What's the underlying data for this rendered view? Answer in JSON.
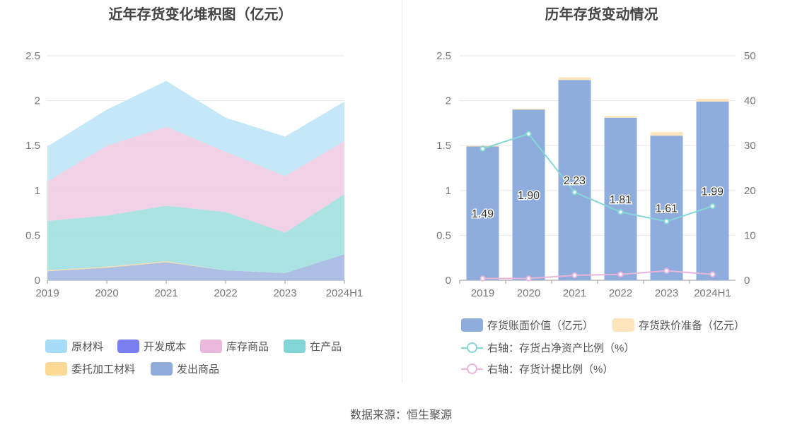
{
  "left_title": "近年存货变化堆积图（亿元）",
  "right_title": "历年存货变动情况",
  "source": "数据来源：恒生聚源",
  "chart_data": [
    {
      "type": "area",
      "stacked": true,
      "title": "近年存货变化堆积图（亿元）",
      "categories": [
        "2019",
        "2020",
        "2021",
        "2022",
        "2023",
        "2024H1"
      ],
      "ylim": [
        0,
        2.5
      ],
      "yticks": [
        "0",
        "0.5",
        "1",
        "1.5",
        "2",
        "2.5"
      ],
      "grid": true,
      "legend_position": "bottom",
      "series": [
        {
          "name": "发出商品",
          "color": "#a9bce3",
          "values": [
            0.1,
            0.14,
            0.2,
            0.11,
            0.08,
            0.29
          ]
        },
        {
          "name": "委托加工材料",
          "color": "#fcd9a0",
          "values": [
            0.01,
            0.01,
            0.01,
            0.0,
            0.0,
            0.0
          ]
        },
        {
          "name": "在产品",
          "color": "#a6e2e2",
          "values": [
            0.55,
            0.57,
            0.62,
            0.65,
            0.45,
            0.67
          ]
        },
        {
          "name": "开发成本",
          "color": "#7a7ff0",
          "values": [
            0,
            0,
            0,
            0,
            0,
            0
          ]
        },
        {
          "name": "库存商品",
          "color": "#efcfe4",
          "values": [
            0.44,
            0.78,
            0.88,
            0.67,
            0.63,
            0.59
          ]
        },
        {
          "name": "原材料",
          "color": "#c2e7f8",
          "values": [
            0.39,
            0.4,
            0.51,
            0.38,
            0.44,
            0.44
          ]
        }
      ],
      "legend": [
        {
          "name": "原材料",
          "color": "#a7dcf7"
        },
        {
          "name": "开发成本",
          "color": "#7a7ff0"
        },
        {
          "name": "库存商品",
          "color": "#e9b8da"
        },
        {
          "name": "在产品",
          "color": "#80d5d5"
        },
        {
          "name": "委托加工材料",
          "color": "#fcd994"
        },
        {
          "name": "发出商品",
          "color": "#8fabdc"
        }
      ]
    },
    {
      "type": "bar",
      "stacked": true,
      "title": "历年存货变动情况",
      "categories": [
        "2019",
        "2020",
        "2021",
        "2022",
        "2023",
        "2024H1"
      ],
      "ylim": [
        0,
        2.5
      ],
      "yticks": [
        "0",
        "0.5",
        "1",
        "1.5",
        "2",
        "2.5"
      ],
      "y2lim": [
        0,
        50
      ],
      "y2ticks": [
        "0",
        "10",
        "20",
        "30",
        "40",
        "50"
      ],
      "grid": true,
      "legend_position": "bottom",
      "series": [
        {
          "name": "存货账面价值（亿元）",
          "color": "#8eaddc",
          "values": [
            1.49,
            1.9,
            2.23,
            1.81,
            1.61,
            1.99
          ],
          "labels": [
            "1.49",
            "1.90",
            "2.23",
            "1.81",
            "1.61",
            "1.99"
          ]
        },
        {
          "name": "存货跌价准备（亿元）",
          "color": "#fde4bb",
          "values": [
            0.01,
            0.01,
            0.03,
            0.02,
            0.04,
            0.03
          ]
        }
      ],
      "line_series": [
        {
          "name": "右轴：存货占净资产比例（%）",
          "color": "#85d6d6",
          "axis": "right",
          "values": [
            29.3,
            32.6,
            19.6,
            15.2,
            13.1,
            16.5
          ]
        },
        {
          "name": "右轴：存货计提比例（%）",
          "color": "#e8b4da",
          "axis": "right",
          "values": [
            0.4,
            0.4,
            1.1,
            1.3,
            2.1,
            1.3
          ]
        }
      ]
    }
  ]
}
